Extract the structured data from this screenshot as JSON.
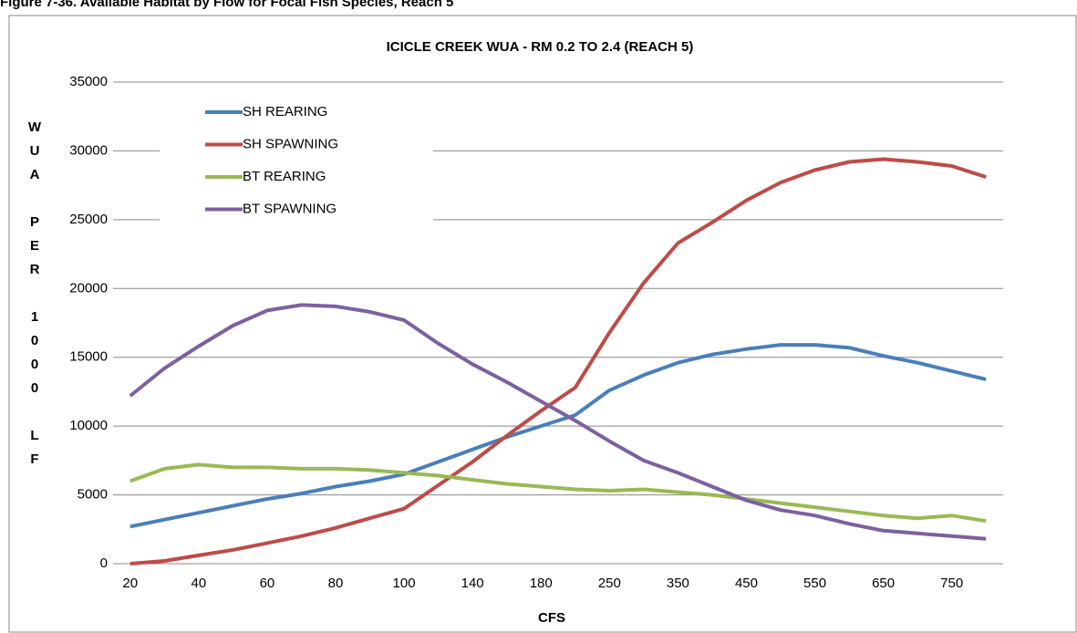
{
  "caption": "Figure 7-36. Available Habitat by Flow for Focal Fish Species, Reach 5",
  "chart_data": {
    "type": "line",
    "title": "ICICLE CREEK WUA - RM 0.2 TO 2.4 (REACH 5)",
    "x_label": "CFS",
    "y_label": "WUA PER 1000 LF",
    "categories": [
      "20",
      null,
      "40",
      null,
      "60",
      null,
      "80",
      null,
      "100",
      null,
      "140",
      null,
      "180",
      null,
      "250",
      null,
      "350",
      null,
      "450",
      null,
      "550",
      null,
      "650",
      null,
      "750",
      null
    ],
    "series": [
      {
        "name": "SH REARING",
        "color": "#4a7ebb",
        "values": [
          2700,
          3200,
          3700,
          4200,
          4700,
          5100,
          5600,
          6000,
          6500,
          7400,
          8300,
          9200,
          10000,
          10800,
          12600,
          13700,
          14600,
          15200,
          15600,
          15900,
          15900,
          15700,
          15100,
          14600,
          14000,
          13400
        ]
      },
      {
        "name": "SH SPAWNING",
        "color": "#be4b48",
        "values": [
          0,
          200,
          600,
          1000,
          1500,
          2000,
          2600,
          3300,
          4000,
          5700,
          7400,
          9300,
          11100,
          12800,
          16800,
          20400,
          23300,
          24800,
          26400,
          27700,
          28600,
          29200,
          29400,
          29200,
          28900,
          28100
        ]
      },
      {
        "name": "BT REARING",
        "color": "#98b954",
        "values": [
          6000,
          6900,
          7200,
          7000,
          7000,
          6900,
          6900,
          6800,
          6600,
          6400,
          6100,
          5800,
          5600,
          5400,
          5300,
          5400,
          5200,
          5000,
          4700,
          4400,
          4100,
          3800,
          3500,
          3300,
          3500,
          3100
        ]
      },
      {
        "name": "BT SPAWNING",
        "color": "#7d60a0",
        "values": [
          12200,
          14200,
          15800,
          17300,
          18400,
          18800,
          18700,
          18300,
          17700,
          16000,
          14500,
          13200,
          11800,
          10400,
          8900,
          7500,
          6600,
          5600,
          4600,
          3900,
          3500,
          2900,
          2400,
          2200,
          2000,
          1800
        ]
      }
    ],
    "ylim": [
      0,
      35000
    ],
    "yticks": [
      0,
      5000,
      10000,
      15000,
      20000,
      25000,
      30000,
      35000
    ],
    "grid": true,
    "legend": "upper-left"
  }
}
